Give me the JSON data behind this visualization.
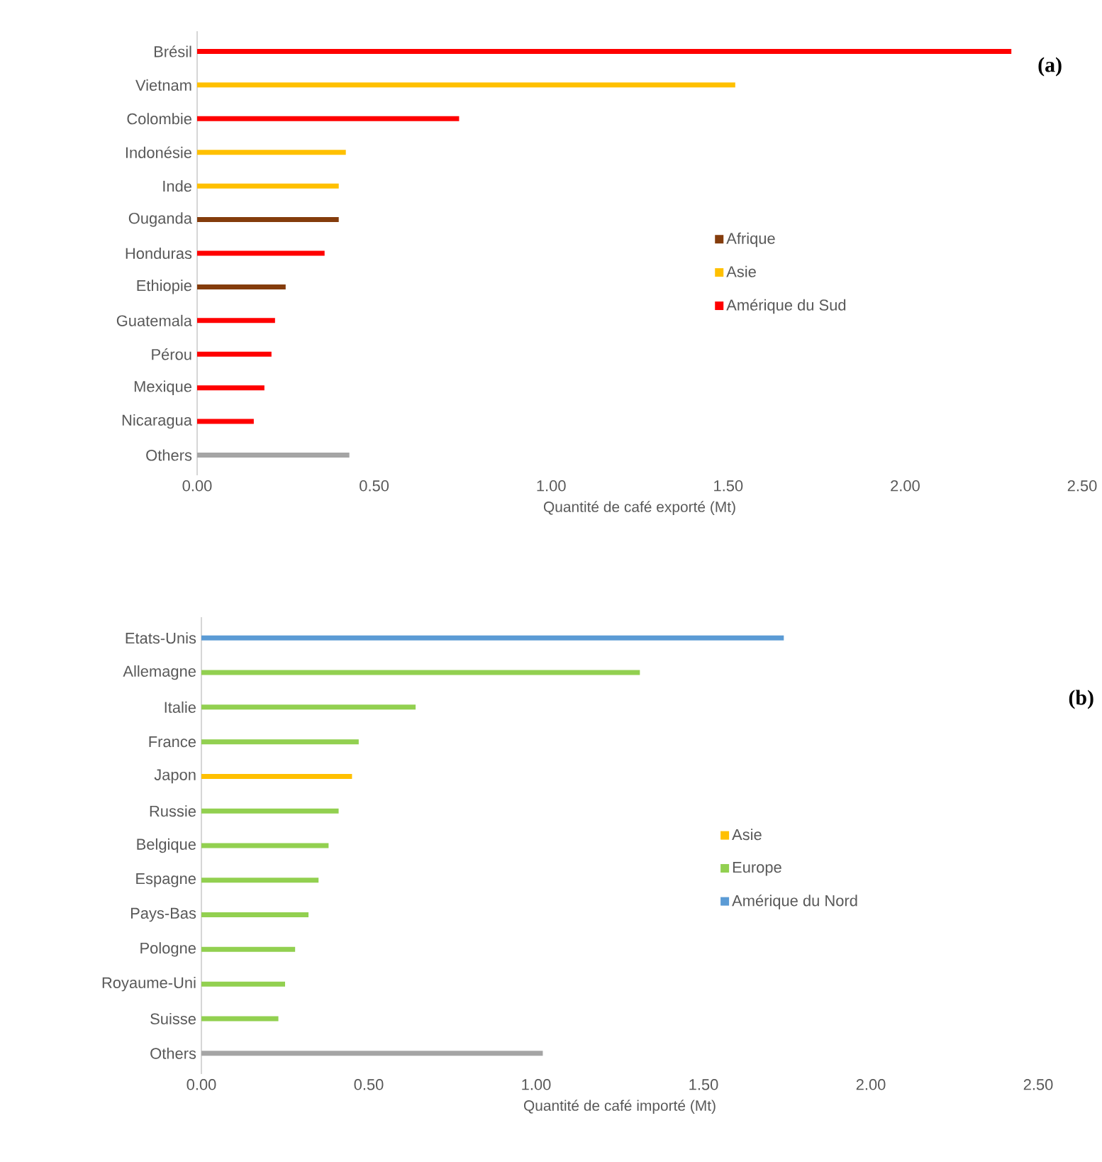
{
  "chart_data": [
    {
      "type": "bar",
      "orientation": "horizontal",
      "xlabel": "Quantité de café exporté (Mt)",
      "categories": [
        "Brésil",
        "Vietnam",
        "Colombie",
        "Indonésie",
        "Inde",
        "Ouganda",
        "Honduras",
        "Ethiopie",
        "Guatemala",
        "Pérou",
        "Mexique",
        "Nicaragua",
        "Others"
      ],
      "series": [
        {
          "name": "Afrique",
          "color": "#843c0c",
          "values": [
            null,
            null,
            null,
            null,
            null,
            0.4,
            null,
            0.25,
            null,
            null,
            null,
            null,
            null
          ]
        },
        {
          "name": "Asie",
          "color": "#ffc000",
          "values": [
            null,
            1.52,
            null,
            0.42,
            0.4,
            null,
            null,
            null,
            null,
            null,
            null,
            null,
            null
          ]
        },
        {
          "name": "Amérique du Sud",
          "color": "#ff0000",
          "values": [
            2.3,
            null,
            0.74,
            null,
            null,
            null,
            0.36,
            null,
            0.22,
            0.21,
            0.19,
            0.16,
            null
          ]
        },
        {
          "color": "#a5a5a5",
          "values": [
            null,
            null,
            null,
            null,
            null,
            null,
            null,
            null,
            null,
            null,
            null,
            null,
            0.43
          ]
        }
      ],
      "xlim": [
        0,
        2.5
      ],
      "xticks": [
        {
          "value": 0,
          "label": "0.00"
        },
        {
          "value": 0.5,
          "label": "0.50"
        },
        {
          "value": 1,
          "label": "1.00"
        },
        {
          "value": 1.5,
          "label": "1.50"
        },
        {
          "value": 2,
          "label": "2.00"
        },
        {
          "value": 2.5,
          "label": "2.50"
        }
      ],
      "legend": "right",
      "grid": false,
      "annotations": [
        "(a)"
      ]
    },
    {
      "type": "bar",
      "orientation": "horizontal",
      "xlabel": "Quantité de café importé (Mt)",
      "categories": [
        "Etats-Unis",
        "Allemagne",
        "Italie",
        "France",
        "Japon",
        "Russie",
        "Belgique",
        "Espagne",
        "Pays-Bas",
        "Pologne",
        "Royaume-Uni",
        "Suisse",
        "Others"
      ],
      "series": [
        {
          "name": "Asie",
          "color": "#ffc000",
          "values": [
            null,
            null,
            null,
            null,
            0.45,
            null,
            null,
            null,
            null,
            null,
            null,
            null,
            null
          ]
        },
        {
          "name": "Europe",
          "color": "#92d050",
          "values": [
            null,
            1.31,
            0.64,
            0.47,
            null,
            0.41,
            0.38,
            0.35,
            0.32,
            0.28,
            0.25,
            0.23,
            null
          ]
        },
        {
          "name": "Amérique du Nord",
          "color": "#5b9bd5",
          "values": [
            1.74,
            null,
            null,
            null,
            null,
            null,
            null,
            null,
            null,
            null,
            null,
            null,
            null
          ]
        },
        {
          "color": "#a5a5a5",
          "values": [
            null,
            null,
            null,
            null,
            null,
            null,
            null,
            null,
            null,
            null,
            null,
            null,
            1.02
          ]
        }
      ],
      "xlim": [
        0,
        2.5
      ],
      "xticks": [
        {
          "value": 0,
          "label": "0.00"
        },
        {
          "value": 0.5,
          "label": "0.50"
        },
        {
          "value": 1,
          "label": "1.00"
        },
        {
          "value": 1.5,
          "label": "1.50"
        },
        {
          "value": 2,
          "label": "2.00"
        },
        {
          "value": 2.5,
          "label": "2.50"
        }
      ],
      "legend": "right",
      "grid": false,
      "annotations": [
        "(b)"
      ]
    }
  ]
}
